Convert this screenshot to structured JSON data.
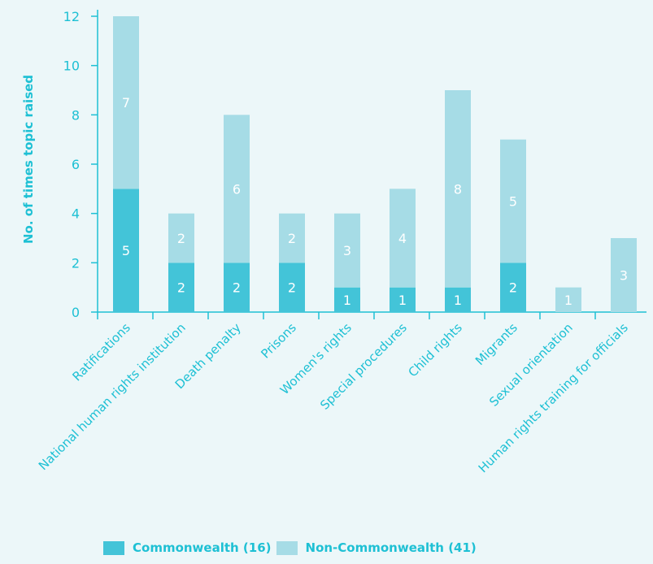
{
  "chart_data": {
    "type": "bar",
    "stacked": true,
    "categories": [
      "Ratifications",
      "National human rights institution",
      "Death penalty",
      "Prisons",
      "Women's rights",
      "Special procedures",
      "Child rights",
      "Migrants",
      "Sexual orientation",
      "Human rights training for officials"
    ],
    "series": [
      {
        "name": "Commonwealth (16)",
        "color": "#43c4d8",
        "values": [
          5,
          2,
          2,
          2,
          1,
          1,
          1,
          2,
          0,
          0
        ]
      },
      {
        "name": "Non-Commonwealth (41)",
        "color": "#a6dce6",
        "values": [
          7,
          2,
          6,
          2,
          3,
          4,
          8,
          5,
          1,
          3
        ]
      }
    ],
    "ylabel": "No. of times topic raised",
    "xlabel": "",
    "title": "",
    "ylim": [
      0,
      12
    ],
    "yticks": [
      0,
      2,
      4,
      6,
      8,
      10,
      12
    ],
    "grid": false,
    "legend_position": "bottom"
  },
  "colors": {
    "axis": "#1ec0d4",
    "label_text": "#1ec0d4",
    "value_text": "#ffffff",
    "background": "#ecf7f9"
  }
}
